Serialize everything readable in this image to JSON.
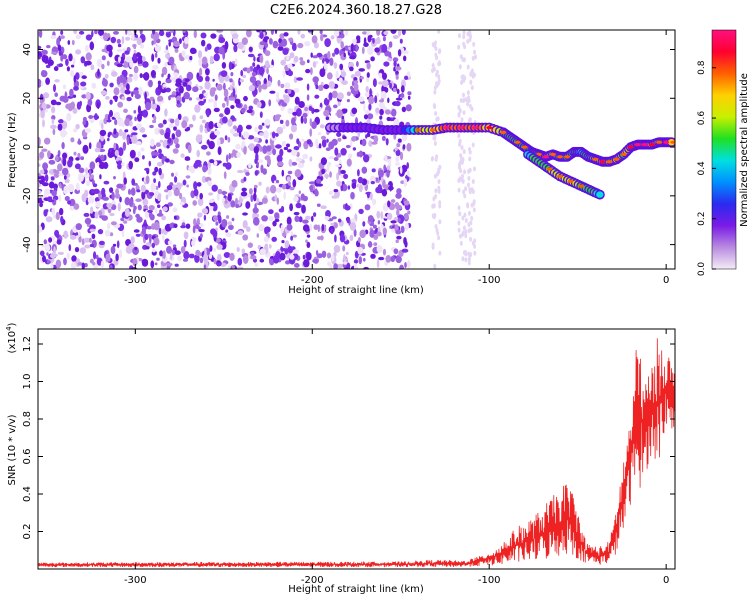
{
  "title": "C2E6.2024.360.18.27.G28",
  "chart_data": [
    {
      "type": "heatmap",
      "xlabel": "Height of straight line (km)",
      "ylabel": "Frequency (Hz)",
      "xlim": [
        -355,
        5
      ],
      "ylim": [
        -50,
        48
      ],
      "xticks": [
        -300,
        -200,
        -100,
        0
      ],
      "yticks": [
        -40,
        -20,
        0,
        20,
        40
      ],
      "colorbar": {
        "label": "Normalized spectral amplitude",
        "ticks": [
          0.0,
          0.2,
          0.4,
          0.6,
          0.8
        ],
        "range": [
          0,
          0.95
        ],
        "colormap": [
          "#f4ecf7",
          "#b98be0",
          "#7a1be6",
          "#2a2af0",
          "#0090ff",
          "#00e0e0",
          "#20e020",
          "#c8f000",
          "#ffd000",
          "#ff6000",
          "#ff0030",
          "#ff1080"
        ]
      },
      "noise_band": {
        "x": [
          -355,
          -145
        ],
        "freq_range": [
          -50,
          48
        ]
      },
      "trace": [
        {
          "x": -190,
          "f": 8,
          "a": 0.1
        },
        {
          "x": -180,
          "f": 8,
          "a": 0.15
        },
        {
          "x": -170,
          "f": 8,
          "a": 0.15
        },
        {
          "x": -160,
          "f": 7,
          "a": 0.15
        },
        {
          "x": -150,
          "f": 7,
          "a": 0.2
        },
        {
          "x": -140,
          "f": 7,
          "a": 0.55
        },
        {
          "x": -132,
          "f": 7,
          "a": 0.6
        },
        {
          "x": -124,
          "f": 8,
          "a": 0.8
        },
        {
          "x": -116,
          "f": 8,
          "a": 0.75
        },
        {
          "x": -108,
          "f": 8,
          "a": 0.8
        },
        {
          "x": -100,
          "f": 8,
          "a": 0.7
        },
        {
          "x": -92,
          "f": 6,
          "a": 0.6
        },
        {
          "x": -88,
          "f": 4,
          "a": 0.5
        },
        {
          "x": -84,
          "f": 2,
          "a": 0.55
        },
        {
          "x": -80,
          "f": 0,
          "a": 0.55
        },
        {
          "x": -76,
          "f": -2,
          "a": 0.5
        },
        {
          "x": -72,
          "f": -3,
          "a": 0.55
        },
        {
          "x": -68,
          "f": -4,
          "a": 0.8
        },
        {
          "x": -64,
          "f": -3,
          "a": 0.6
        },
        {
          "x": -60,
          "f": -4,
          "a": 0.55
        },
        {
          "x": -56,
          "f": -4,
          "a": 0.55
        },
        {
          "x": -52,
          "f": -2,
          "a": 0.5
        },
        {
          "x": -48,
          "f": -2,
          "a": 0.45
        },
        {
          "x": -44,
          "f": -4,
          "a": 0.5
        },
        {
          "x": -40,
          "f": -5,
          "a": 0.6
        },
        {
          "x": -36,
          "f": -6,
          "a": 0.65
        },
        {
          "x": -32,
          "f": -6,
          "a": 0.6
        },
        {
          "x": -28,
          "f": -5,
          "a": 0.6
        },
        {
          "x": -24,
          "f": -3,
          "a": 0.55
        },
        {
          "x": -20,
          "f": 0,
          "a": 0.7
        },
        {
          "x": -16,
          "f": 1,
          "a": 0.75
        },
        {
          "x": -12,
          "f": 1,
          "a": 0.8
        },
        {
          "x": -8,
          "f": 1,
          "a": 0.7
        },
        {
          "x": -4,
          "f": 2,
          "a": 0.6
        },
        {
          "x": 0,
          "f": 2,
          "a": 0.85
        },
        {
          "x": 4,
          "f": 2,
          "a": 0.6
        }
      ],
      "trace_branch": [
        {
          "x": -78,
          "f": -3,
          "a": 0.45
        },
        {
          "x": -72,
          "f": -6,
          "a": 0.5
        },
        {
          "x": -66,
          "f": -9,
          "a": 0.55
        },
        {
          "x": -60,
          "f": -12,
          "a": 0.6
        },
        {
          "x": -54,
          "f": -14,
          "a": 0.6
        },
        {
          "x": -48,
          "f": -16,
          "a": 0.55
        },
        {
          "x": -42,
          "f": -18,
          "a": 0.5
        },
        {
          "x": -36,
          "f": -20,
          "a": 0.4
        }
      ]
    },
    {
      "type": "line",
      "xlabel": "Height of straight line (km)",
      "ylabel": "SNR (10 * v/v)",
      "yscale_label": "(x10",
      "yscale_exp": "4",
      "xlim": [
        -355,
        5
      ],
      "ylim": [
        0,
        1.28
      ],
      "xticks": [
        -300,
        -200,
        -100,
        0
      ],
      "yticks": [
        0.2,
        0.4,
        0.6,
        0.8,
        1.0,
        1.2
      ],
      "series": [
        {
          "color": "#ee2222",
          "envelope": [
            {
              "x": -355,
              "lo": 0.01,
              "hi": 0.035
            },
            {
              "x": -150,
              "lo": 0.01,
              "hi": 0.04
            },
            {
              "x": -130,
              "lo": 0.01,
              "hi": 0.05
            },
            {
              "x": -115,
              "lo": 0.01,
              "hi": 0.045
            },
            {
              "x": -105,
              "lo": 0.015,
              "hi": 0.07
            },
            {
              "x": -95,
              "lo": 0.02,
              "hi": 0.12
            },
            {
              "x": -85,
              "lo": 0.03,
              "hi": 0.22
            },
            {
              "x": -75,
              "lo": 0.04,
              "hi": 0.28
            },
            {
              "x": -65,
              "lo": 0.05,
              "hi": 0.38
            },
            {
              "x": -55,
              "lo": 0.08,
              "hi": 0.48
            },
            {
              "x": -50,
              "lo": 0.05,
              "hi": 0.32
            },
            {
              "x": -45,
              "lo": 0.03,
              "hi": 0.14
            },
            {
              "x": -38,
              "lo": 0.02,
              "hi": 0.12
            },
            {
              "x": -32,
              "lo": 0.03,
              "hi": 0.15
            },
            {
              "x": -28,
              "lo": 0.08,
              "hi": 0.35
            },
            {
              "x": -24,
              "lo": 0.2,
              "hi": 0.6
            },
            {
              "x": -20,
              "lo": 0.35,
              "hi": 0.85
            },
            {
              "x": -16,
              "lo": 0.4,
              "hi": 1.28
            },
            {
              "x": -12,
              "lo": 0.5,
              "hi": 1.0
            },
            {
              "x": -8,
              "lo": 0.6,
              "hi": 1.1
            },
            {
              "x": -4,
              "lo": 0.55,
              "hi": 1.28
            },
            {
              "x": 0,
              "lo": 0.75,
              "hi": 1.2
            },
            {
              "x": 5,
              "lo": 0.7,
              "hi": 1.05
            }
          ]
        }
      ]
    }
  ]
}
